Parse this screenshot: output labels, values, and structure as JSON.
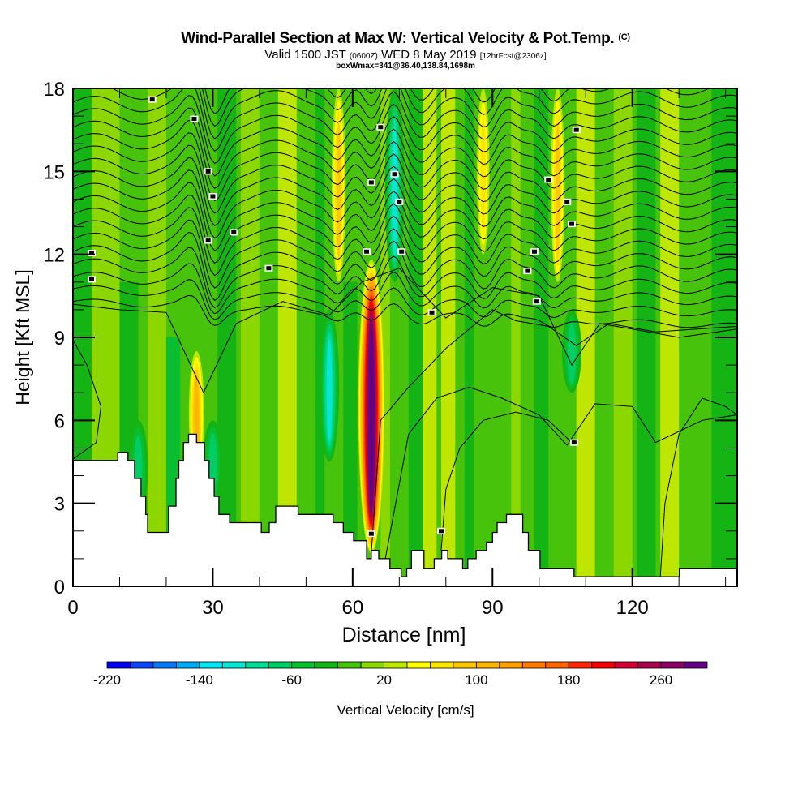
{
  "title": {
    "main": "Wind-Parallel Section at Max W: Vertical Velocity & Pot.Temp.",
    "copyright": "(C)",
    "valid_prefix": "Valid 1500 JST",
    "valid_utc": "(0600Z)",
    "valid_date": "WED 8 May 2019",
    "forecast": "[12hrFcst@2306z]",
    "box_wmax": "boxWmax=341@36.40,138.84,1698m"
  },
  "chart_data": {
    "type": "heatmap",
    "title": "Wind-Parallel Section at Max W: Vertical Velocity & Pot.Temp.",
    "xlabel": "Distance [nm]",
    "ylabel": "Height [Kft MSL]",
    "xlim": [
      0,
      142.5
    ],
    "ylim": [
      0,
      18
    ],
    "x_ticks": [
      0,
      30,
      60,
      90,
      120
    ],
    "x_tick_labels": [
      "0",
      "30",
      "60",
      "90",
      "120"
    ],
    "y_ticks": [
      0,
      3,
      6,
      9,
      12,
      15,
      18
    ],
    "y_tick_labels": [
      "0",
      "3",
      "6",
      "9",
      "12",
      "15",
      "18"
    ],
    "colorbar": {
      "label": "Vertical Velocity [cm/s]",
      "min": -220,
      "step": 20,
      "tick_labels": [
        "-220",
        "-140",
        "-60",
        "20",
        "100",
        "180",
        "260"
      ],
      "tick_values": [
        -220,
        -140,
        -60,
        20,
        100,
        180,
        260
      ],
      "colors": [
        "#0000f0",
        "#0a46f5",
        "#0a78f5",
        "#00aaf5",
        "#00e6f5",
        "#0ae6d2",
        "#00dc96",
        "#00cd64",
        "#0abe32",
        "#14b414",
        "#46c30a",
        "#8cd700",
        "#bee600",
        "#ffff00",
        "#ffe600",
        "#ffc800",
        "#ffb400",
        "#ffa000",
        "#ff7800",
        "#ff6400",
        "#ff2800",
        "#f00000",
        "#d20032",
        "#aa0050",
        "#8c0064",
        "#640082"
      ]
    },
    "max_w": {
      "value": 341,
      "lat": 36.4,
      "lon": 138.84,
      "height_m": 1698
    },
    "updraft_cores": [
      {
        "x_nm": 64,
        "y_kft_bottom": 1.2,
        "y_kft_top": 11.8,
        "max_cms": 341
      },
      {
        "x_nm": 26.5,
        "y_kft_bottom": 4.0,
        "y_kft_top": 8.5,
        "max_cms": 100
      },
      {
        "x_nm": 57,
        "y_kft_bottom": 11,
        "y_kft_top": 18,
        "max_cms": 80
      },
      {
        "x_nm": 104,
        "y_kft_bottom": 11,
        "y_kft_top": 18,
        "max_cms": 80
      },
      {
        "x_nm": 88,
        "y_kft_bottom": 12,
        "y_kft_top": 18,
        "max_cms": 60
      }
    ],
    "downdraft_cores": [
      {
        "x_nm": 55,
        "y_kft_bottom": 4.5,
        "y_kft_top": 10,
        "min_cms": -120
      },
      {
        "x_nm": 69,
        "y_kft_bottom": 11,
        "y_kft_top": 18,
        "min_cms": -120
      },
      {
        "x_nm": 14,
        "y_kft_bottom": 2.5,
        "y_kft_top": 6,
        "min_cms": -80
      },
      {
        "x_nm": 30,
        "y_kft_bottom": 3,
        "y_kft_top": 6,
        "min_cms": -80
      },
      {
        "x_nm": 107,
        "y_kft_bottom": 7,
        "y_kft_top": 10,
        "min_cms": -80
      }
    ],
    "terrain_kft": {
      "x": [
        0,
        9.6,
        9.6,
        11.8,
        11.8,
        13.2,
        13.2,
        14.6,
        14.6,
        15.6,
        15.6,
        16.0,
        16.0,
        20.5,
        20.5,
        22.1,
        22.1,
        22.7,
        22.7,
        23.7,
        23.7,
        24.8,
        24.8,
        26.5,
        26.5,
        28.2,
        28.2,
        29.2,
        29.2,
        30.3,
        30.3,
        31.3,
        31.3,
        33.6,
        33.6,
        40.4,
        40.4,
        42.1,
        42.1,
        43.5,
        43.5,
        48.3,
        48.3,
        55.8,
        55.8,
        58.0,
        58.0,
        60.2,
        60.2,
        63.0,
        63.0,
        64.0,
        64.0,
        65.6,
        65.6,
        68.0,
        68.0,
        70.4,
        70.4,
        71.6,
        71.6,
        72.6,
        72.6,
        75.3,
        75.3,
        77.5,
        77.5,
        79.1,
        79.1,
        80.4,
        80.4,
        83.6,
        83.6,
        84.7,
        84.7,
        86.5,
        86.5,
        88.7,
        88.7,
        90.0,
        90.0,
        91.0,
        91.0,
        93.0,
        93.0,
        96.5,
        96.5,
        97.7,
        97.7,
        100.2,
        100.2,
        107.5,
        107.5,
        112.5,
        112.5,
        130.1,
        130.1,
        142.5
      ],
      "y": [
        4.55,
        4.55,
        4.85,
        4.85,
        4.55,
        4.55,
        3.9,
        3.9,
        3.25,
        3.25,
        2.6,
        2.6,
        1.95,
        1.95,
        2.9,
        2.9,
        3.9,
        3.9,
        4.55,
        4.55,
        5.2,
        5.2,
        5.5,
        5.5,
        5.2,
        5.2,
        4.55,
        4.55,
        3.9,
        3.9,
        3.25,
        3.25,
        2.6,
        2.6,
        2.3,
        2.3,
        1.95,
        1.95,
        2.3,
        2.3,
        2.9,
        2.9,
        2.6,
        2.6,
        2.3,
        2.3,
        1.95,
        1.95,
        1.65,
        1.65,
        1.0,
        1.0,
        1.3,
        1.3,
        1.0,
        1.0,
        0.65,
        0.65,
        0.35,
        0.35,
        0.65,
        0.65,
        1.3,
        1.3,
        0.65,
        0.65,
        1.0,
        1.0,
        1.3,
        1.3,
        1.0,
        1.0,
        0.65,
        0.65,
        1.0,
        1.0,
        1.3,
        1.3,
        1.6,
        1.6,
        1.95,
        1.95,
        2.3,
        2.3,
        2.6,
        2.6,
        1.95,
        1.95,
        1.3,
        1.3,
        0.65,
        0.65,
        0.35,
        0.35,
        0.35,
        0.35,
        0.65,
        0.65
      ]
    },
    "theta_contours_note": "Potential temperature isentropes (black lines) every ~1 K, tightly packed above ~10 kft, wave-like deflections over updrafts",
    "theta_contour_labels_visible": [
      "18",
      "18",
      "38"
    ]
  },
  "axes": {
    "x_label": "Distance [nm]",
    "y_label": "Height [Kft MSL]"
  },
  "colorbar": {
    "label": "Vertical Velocity [cm/s]"
  }
}
